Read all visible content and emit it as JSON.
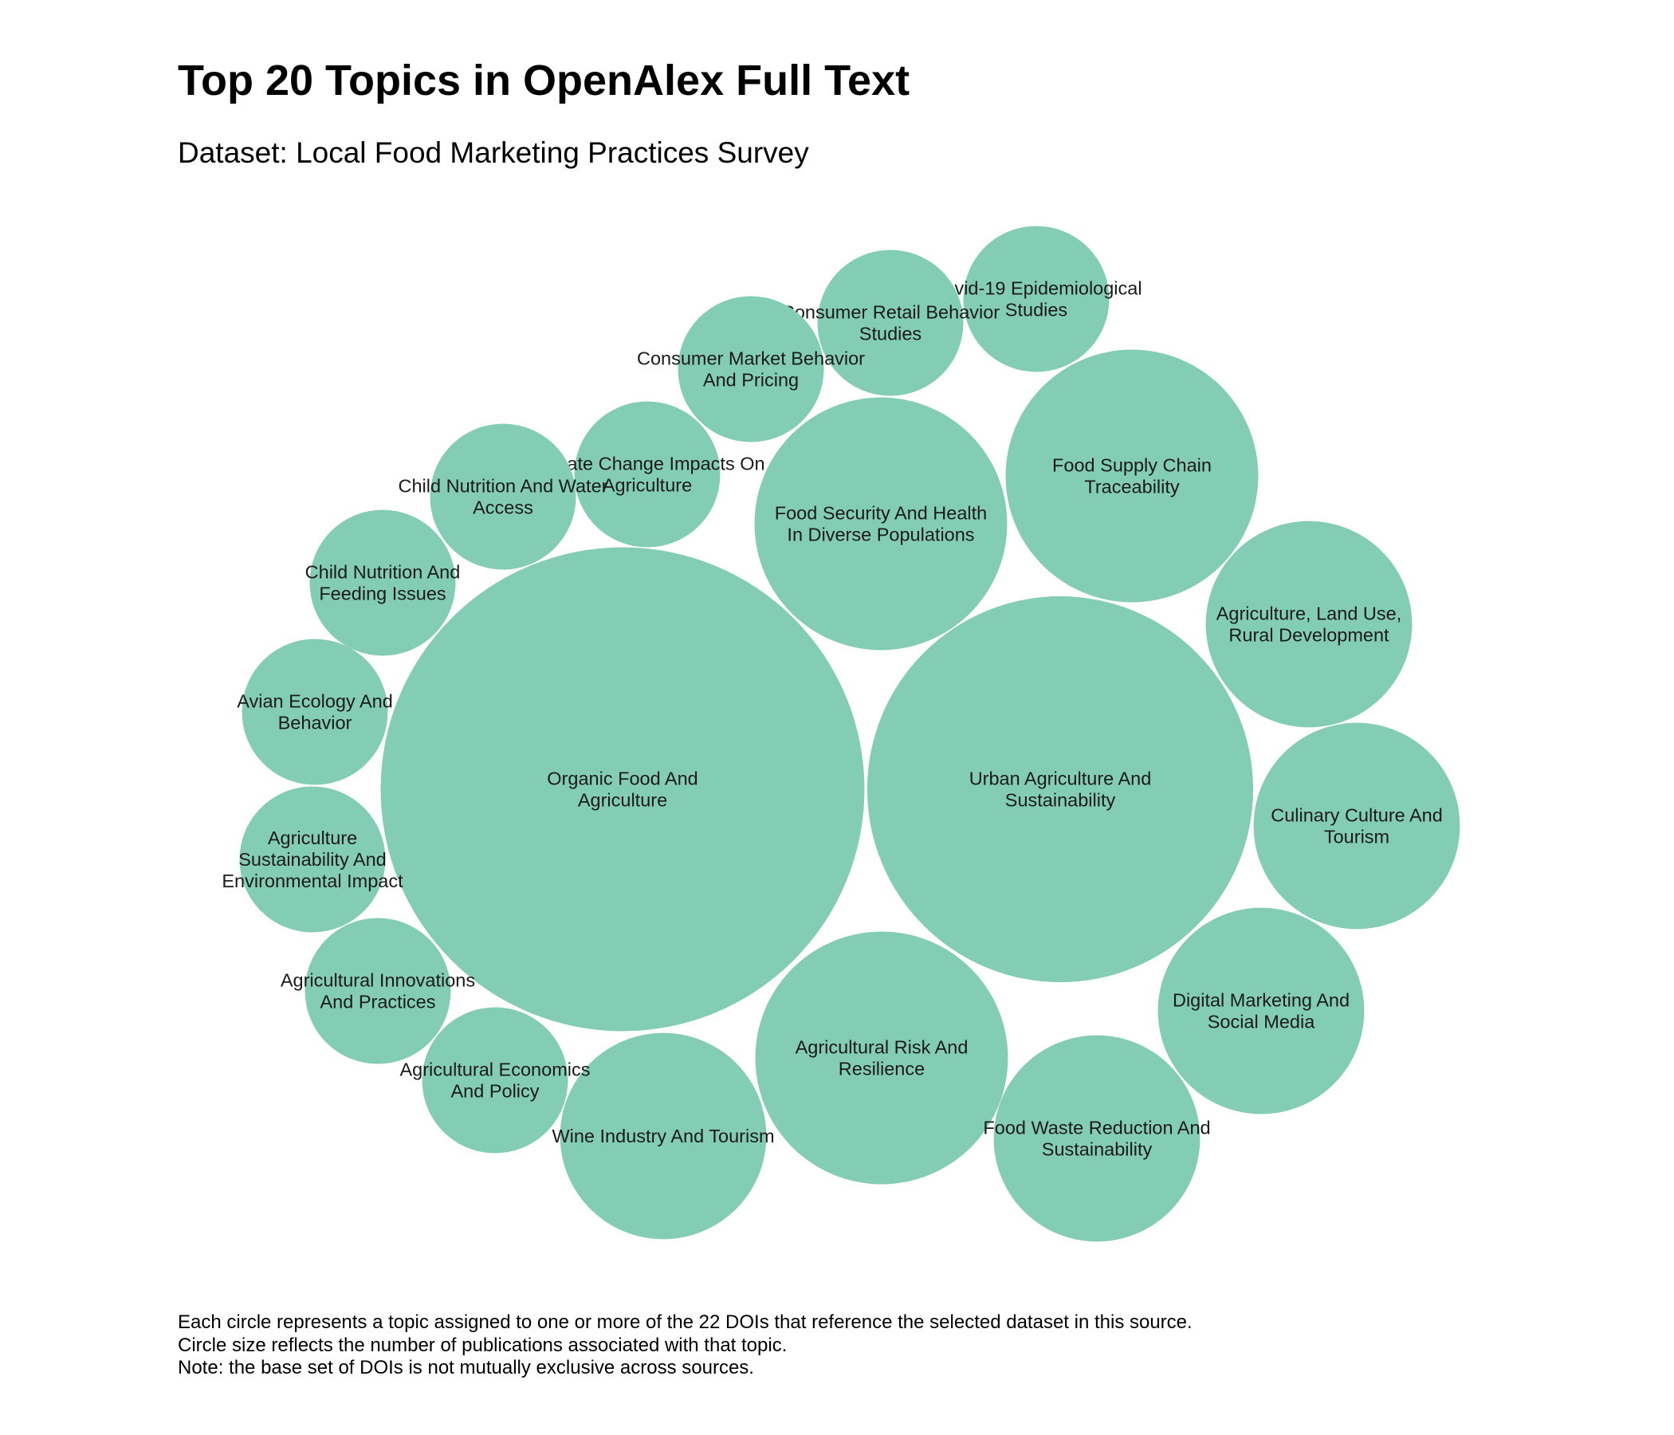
{
  "title": "Top 20 Topics in OpenAlex Full Text",
  "subtitle": "Dataset: Local Food Marketing Practices Survey",
  "colors": {
    "bubble": "#84cdb5",
    "label": "#1a1a1a"
  },
  "footnote": [
    "Each circle represents a topic assigned to one or more of the 22 DOIs that reference the selected dataset in this source.",
    "Circle size reflects the number of publications associated with that topic.",
    "Note: the base set of DOIs is not mutually exclusive across sources."
  ],
  "chart_data": {
    "type": "bubble",
    "size_metric": "number of publications associated with topic (relative)",
    "topics": [
      {
        "label": "Organic Food And Agriculture",
        "value": 11,
        "lines": [
          "Organic Food And",
          "Agriculture"
        ]
      },
      {
        "label": "Urban Agriculture And Sustainability",
        "value": 7,
        "lines": [
          "Urban Agriculture And",
          "Sustainability"
        ]
      },
      {
        "label": "Food Security And Health In Diverse Populations",
        "value": 3,
        "lines": [
          "Food Security And Health",
          "In Diverse Populations"
        ]
      },
      {
        "label": "Food Supply Chain Traceability",
        "value": 3,
        "lines": [
          "Food Supply Chain",
          "Traceability"
        ]
      },
      {
        "label": "Agricultural Risk And Resilience",
        "value": 3,
        "lines": [
          "Agricultural Risk And",
          "Resilience"
        ]
      },
      {
        "label": "Agriculture, Land Use, Rural Development",
        "value": 2,
        "lines": [
          "Agriculture, Land Use,",
          "Rural Development"
        ]
      },
      {
        "label": "Culinary Culture And Tourism",
        "value": 2,
        "lines": [
          "Culinary Culture And",
          "Tourism"
        ]
      },
      {
        "label": "Digital Marketing And Social Media",
        "value": 2,
        "lines": [
          "Digital Marketing And",
          "Social Media"
        ]
      },
      {
        "label": "Food Waste Reduction And Sustainability",
        "value": 2,
        "lines": [
          "Food Waste Reduction And",
          "Sustainability"
        ]
      },
      {
        "label": "Wine Industry And Tourism",
        "value": 2,
        "lines": [
          "Wine Industry And Tourism"
        ]
      },
      {
        "label": "Covid-19 Epidemiological Studies",
        "value": 1,
        "lines": [
          "Covid-19 Epidemiological",
          "Studies"
        ]
      },
      {
        "label": "Consumer Retail Behavior Studies",
        "value": 1,
        "lines": [
          "Consumer Retail Behavior",
          "Studies"
        ]
      },
      {
        "label": "Consumer Market Behavior And Pricing",
        "value": 1,
        "lines": [
          "Consumer Market Behavior",
          "And Pricing"
        ]
      },
      {
        "label": "Climate Change Impacts On Agriculture",
        "value": 1,
        "lines": [
          "Climate Change Impacts On",
          "Agriculture"
        ]
      },
      {
        "label": "Child Nutrition And Water Access",
        "value": 1,
        "lines": [
          "Child Nutrition And Water",
          "Access"
        ]
      },
      {
        "label": "Child Nutrition And Feeding Issues",
        "value": 1,
        "lines": [
          "Child Nutrition And",
          "Feeding Issues"
        ]
      },
      {
        "label": "Avian Ecology And Behavior",
        "value": 1,
        "lines": [
          "Avian Ecology And",
          "Behavior"
        ]
      },
      {
        "label": "Agriculture Sustainability And Environmental Impact",
        "value": 1,
        "lines": [
          "Agriculture",
          "Sustainability And",
          "Environmental Impact"
        ]
      },
      {
        "label": "Agricultural Innovations And Practices",
        "value": 1,
        "lines": [
          "Agricultural Innovations",
          "And Practices"
        ]
      },
      {
        "label": "Agricultural Economics And Policy",
        "value": 1,
        "lines": [
          "Agricultural Economics",
          "And Policy"
        ]
      }
    ]
  }
}
